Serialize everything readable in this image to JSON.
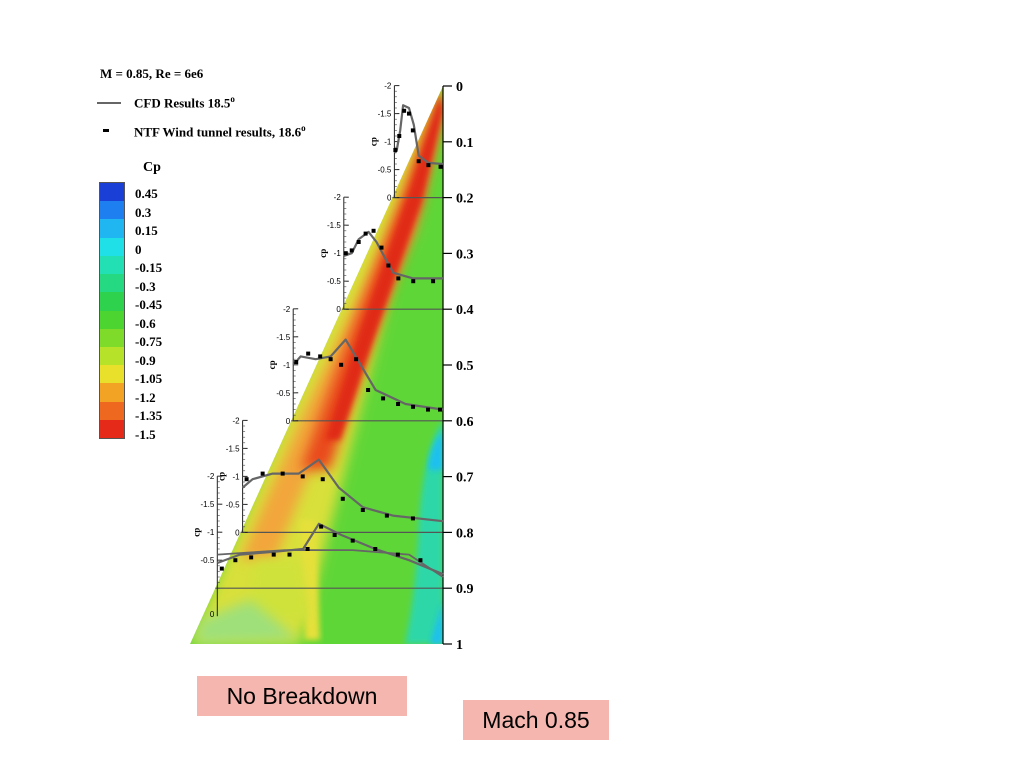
{
  "legend": {
    "header": "M = 0.85, Re = 6e6",
    "cfd_label": "CFD Results 18.5",
    "cfd_deg": "o",
    "ntf_label": "NTF Wind tunnel results, 18.6",
    "ntf_deg": "o"
  },
  "colorbar": {
    "title": "Cp",
    "levels": [
      "0.45",
      "0.3",
      "0.15",
      "0",
      "-0.15",
      "-0.3",
      "-0.45",
      "-0.6",
      "-0.75",
      "-0.9",
      "-1.05",
      "-1.2",
      "-1.35",
      "-1.5"
    ],
    "colors": [
      "#1a3fd6",
      "#1e7ff0",
      "#1fb6f2",
      "#1fe0e6",
      "#22e0b4",
      "#25d882",
      "#2ed24d",
      "#4cd530",
      "#7edb2a",
      "#b6e22a",
      "#e8e02a",
      "#f2a324",
      "#ef6820",
      "#e52a1a"
    ]
  },
  "labels": {
    "no_breakdown": "No Breakdown",
    "mach": "Mach 0.85"
  },
  "chart_data": {
    "type": "line",
    "eta_axis": {
      "ticks": [
        "0",
        "0.1",
        "0.2",
        "0.3",
        "0.4",
        "0.5",
        "0.6",
        "0.7",
        "0.8",
        "0.9",
        "1"
      ]
    },
    "cp_axis_label": "cp",
    "cp_ticks": [
      "-2",
      "-1.5",
      "-1",
      "-0.5",
      "0"
    ],
    "cp_ticks_short": [
      "-2",
      "-1.5",
      "-1",
      "-0.5"
    ],
    "stations": [
      {
        "eta": 0.2,
        "cfd": [
          [
            0,
            -0.8
          ],
          [
            0.05,
            -0.85
          ],
          [
            0.12,
            -1.2
          ],
          [
            0.18,
            -1.65
          ],
          [
            0.3,
            -1.6
          ],
          [
            0.4,
            -1.3
          ],
          [
            0.5,
            -0.75
          ],
          [
            0.7,
            -0.62
          ],
          [
            1,
            -0.6
          ]
        ],
        "ntf": [
          [
            0.02,
            -0.85
          ],
          [
            0.1,
            -1.1
          ],
          [
            0.2,
            -1.55
          ],
          [
            0.3,
            -1.5
          ],
          [
            0.38,
            -1.2
          ],
          [
            0.5,
            -0.65
          ],
          [
            0.7,
            -0.58
          ],
          [
            0.95,
            -0.55
          ]
        ]
      },
      {
        "eta": 0.4,
        "cfd": [
          [
            0,
            -0.95
          ],
          [
            0.08,
            -1.0
          ],
          [
            0.15,
            -1.25
          ],
          [
            0.25,
            -1.38
          ],
          [
            0.33,
            -1.2
          ],
          [
            0.42,
            -0.9
          ],
          [
            0.5,
            -0.65
          ],
          [
            0.7,
            -0.55
          ],
          [
            1,
            -0.55
          ]
        ],
        "ntf": [
          [
            0.02,
            -1.0
          ],
          [
            0.08,
            -1.05
          ],
          [
            0.15,
            -1.2
          ],
          [
            0.22,
            -1.35
          ],
          [
            0.3,
            -1.4
          ],
          [
            0.38,
            -1.1
          ],
          [
            0.45,
            -0.78
          ],
          [
            0.55,
            -0.55
          ],
          [
            0.7,
            -0.5
          ],
          [
            0.9,
            -0.5
          ]
        ]
      },
      {
        "eta": 0.6,
        "cfd": [
          [
            0,
            -1.0
          ],
          [
            0.05,
            -1.15
          ],
          [
            0.15,
            -1.1
          ],
          [
            0.25,
            -1.15
          ],
          [
            0.35,
            -1.45
          ],
          [
            0.45,
            -1.0
          ],
          [
            0.55,
            -0.55
          ],
          [
            0.75,
            -0.3
          ],
          [
            1,
            -0.2
          ]
        ],
        "ntf": [
          [
            0.02,
            -1.05
          ],
          [
            0.1,
            -1.2
          ],
          [
            0.18,
            -1.15
          ],
          [
            0.25,
            -1.1
          ],
          [
            0.32,
            -1.0
          ],
          [
            0.42,
            -1.1
          ],
          [
            0.5,
            -0.55
          ],
          [
            0.6,
            -0.4
          ],
          [
            0.7,
            -0.3
          ],
          [
            0.8,
            -0.25
          ],
          [
            0.9,
            -0.2
          ],
          [
            0.98,
            -0.2
          ]
        ]
      },
      {
        "eta": 0.8,
        "cfd": [
          [
            0,
            -0.8
          ],
          [
            0.05,
            -0.95
          ],
          [
            0.15,
            -1.05
          ],
          [
            0.28,
            -1.05
          ],
          [
            0.38,
            -1.3
          ],
          [
            0.48,
            -0.8
          ],
          [
            0.6,
            -0.45
          ],
          [
            0.75,
            -0.3
          ],
          [
            1,
            -0.2
          ]
        ],
        "ntf": [
          [
            0.02,
            -0.95
          ],
          [
            0.1,
            -1.05
          ],
          [
            0.2,
            -1.05
          ],
          [
            0.3,
            -1.0
          ],
          [
            0.4,
            -0.95
          ],
          [
            0.5,
            -0.6
          ],
          [
            0.6,
            -0.4
          ],
          [
            0.72,
            -0.3
          ],
          [
            0.85,
            -0.25
          ]
        ]
      },
      {
        "eta": 0.9,
        "cfd": [
          [
            0,
            -0.45
          ],
          [
            0.1,
            -0.6
          ],
          [
            0.25,
            -0.65
          ],
          [
            0.38,
            -0.7
          ],
          [
            0.45,
            -1.15
          ],
          [
            0.55,
            -0.95
          ],
          [
            0.7,
            -0.7
          ],
          [
            0.85,
            -0.5
          ],
          [
            1,
            -0.25
          ]
        ],
        "ntf": [
          [
            0.02,
            -0.35
          ],
          [
            0.08,
            -0.5
          ],
          [
            0.15,
            -0.55
          ],
          [
            0.25,
            -0.6
          ],
          [
            0.32,
            -0.6
          ],
          [
            0.4,
            -0.7
          ],
          [
            0.46,
            -1.1
          ],
          [
            0.52,
            -0.95
          ],
          [
            0.6,
            -0.85
          ],
          [
            0.7,
            -0.7
          ],
          [
            0.8,
            -0.6
          ],
          [
            0.9,
            -0.5
          ]
        ]
      }
    ]
  }
}
